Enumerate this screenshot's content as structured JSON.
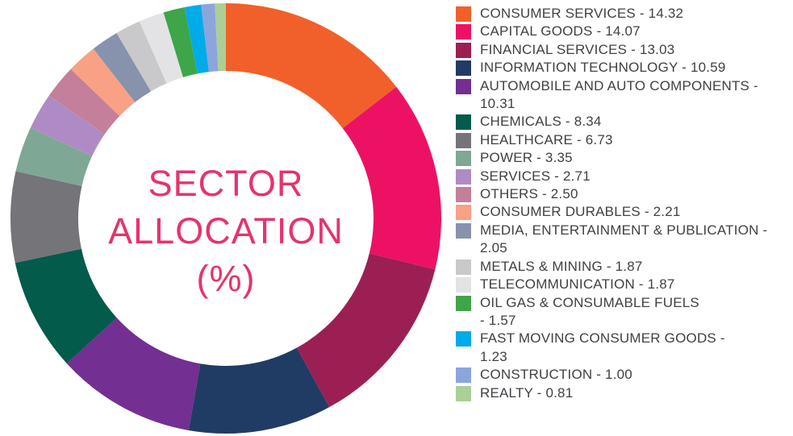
{
  "page": {
    "background": "#FFFFFF"
  },
  "donut": {
    "title_lines": [
      "SECTOR",
      "ALLOCATION",
      "(%)"
    ],
    "title_color": "#E6336C"
  },
  "legend": {
    "text_color": "#414045"
  },
  "chart_data": {
    "type": "pie",
    "subtype": "donut",
    "title": "SECTOR ALLOCATION (%)",
    "units": "percent",
    "start_angle_deg": 0,
    "direction": "clockwise",
    "legend_position": "right",
    "series": [
      {
        "label": "CONSUMER SERVICES",
        "value": 14.32,
        "color": "#F1602A",
        "legend_lines": [
          "CONSUMER SERVICES - 14.32"
        ]
      },
      {
        "label": "CAPITAL GOODS",
        "value": 14.07,
        "color": "#ED1164",
        "legend_lines": [
          "CAPITAL GOODS - 14.07"
        ]
      },
      {
        "label": "FINANCIAL SERVICES",
        "value": 13.03,
        "color": "#9C1F54",
        "legend_lines": [
          "FINANCIAL SERVICES - 13.03"
        ]
      },
      {
        "label": "INFORMATION TECHNOLOGY",
        "value": 10.59,
        "color": "#203C64",
        "legend_lines": [
          "INFORMATION TECHNOLOGY - 10.59"
        ]
      },
      {
        "label": "AUTOMOBILE AND AUTO COMPONENTS",
        "value": 10.31,
        "color": "#732F92",
        "legend_lines": [
          "AUTOMOBILE AND AUTO COMPONENTS -",
          "10.31"
        ]
      },
      {
        "label": "CHEMICALS",
        "value": 8.34,
        "color": "#035B4B",
        "legend_lines": [
          "CHEMICALS - 8.34"
        ]
      },
      {
        "label": "HEALTHCARE",
        "value": 6.73,
        "color": "#757478",
        "legend_lines": [
          "HEALTHCARE - 6.73"
        ]
      },
      {
        "label": "POWER",
        "value": 3.35,
        "color": "#7FA795",
        "legend_lines": [
          "POWER - 3.35"
        ]
      },
      {
        "label": "SERVICES",
        "value": 2.71,
        "color": "#AF8BC5",
        "legend_lines": [
          "SERVICES - 2.71"
        ]
      },
      {
        "label": "OTHERS",
        "value": 2.5,
        "color": "#C47F9B",
        "legend_lines": [
          "OTHERS - 2.50"
        ]
      },
      {
        "label": "CONSUMER DURABLES",
        "value": 2.21,
        "color": "#F8A184",
        "legend_lines": [
          "CONSUMER DURABLES - 2.21"
        ]
      },
      {
        "label": "MEDIA, ENTERTAINMENT & PUBLICATION",
        "value": 2.05,
        "color": "#8793AC",
        "legend_lines": [
          "MEDIA, ENTERTAINMENT & PUBLICATION -",
          "2.05"
        ]
      },
      {
        "label": "METALS & MINING",
        "value": 1.87,
        "color": "#C9C9CB",
        "legend_lines": [
          "METALS & MINING - 1.87"
        ]
      },
      {
        "label": "TELECOMMUNICATION",
        "value": 1.87,
        "color": "#E3E3E5",
        "legend_lines": [
          "TELECOMMUNICATION - 1.87"
        ]
      },
      {
        "label": "OIL GAS & CONSUMABLE FUELS",
        "value": 1.57,
        "color": "#3CA648",
        "legend_lines": [
          "OIL GAS & CONSUMABLE FUELS",
          "- 1.57"
        ]
      },
      {
        "label": "FAST MOVING CONSUMER GOODS",
        "value": 1.23,
        "color": "#00ABE9",
        "legend_lines": [
          "FAST MOVING CONSUMER GOODS -",
          "1.23"
        ]
      },
      {
        "label": "CONSTRUCTION",
        "value": 1.0,
        "color": "#8CA5DC",
        "legend_lines": [
          "CONSTRUCTION - 1.00"
        ]
      },
      {
        "label": "REALTY",
        "value": 0.81,
        "color": "#ABCF95",
        "legend_lines": [
          "REALTY - 0.81"
        ]
      }
    ]
  }
}
